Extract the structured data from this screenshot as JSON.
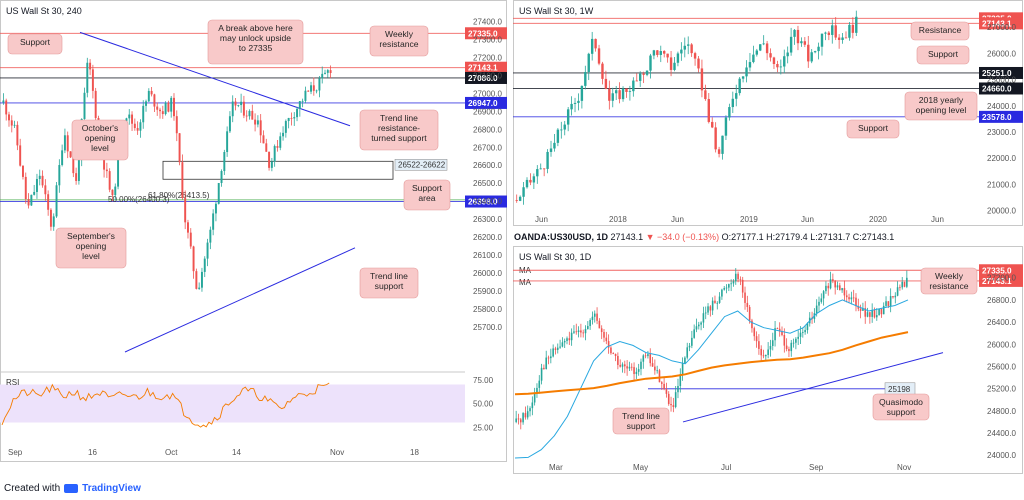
{
  "chart_data": [
    {
      "id": "4h",
      "type": "candlestick",
      "title": "US Wall St 30, 240",
      "ylim": [
        25560,
        27420
      ],
      "yticks": [
        25700,
        25800,
        25900,
        26000,
        26100,
        26200,
        26300,
        26400,
        26500,
        26600,
        26700,
        26800,
        26900,
        27000,
        27100,
        27200,
        27300,
        27400
      ],
      "xticks": [
        "Sep",
        "16",
        "Oct",
        "14",
        "Nov",
        "18"
      ],
      "price_labels": [
        {
          "value": 27335.0,
          "text": "27335.0",
          "color": "#ef5350"
        },
        {
          "value": 27143.1,
          "text": "27143.1",
          "color": "#ef5350"
        },
        {
          "value": 27086.0,
          "text": "27086.0",
          "color": "#131722"
        },
        {
          "value": 26947.0,
          "text": "26947.0",
          "color": "#2a2ae0"
        },
        {
          "value": 26398.0,
          "text": "26398.0",
          "color": "#2a2ae0"
        }
      ],
      "zone_label": "26522-26622",
      "zone": [
        26522,
        26622
      ],
      "fib_labels": [
        "50.00%(26400.3)",
        "61.80%(26413.5)"
      ],
      "annotations": [
        "Support",
        "October's opening level",
        "September's opening level",
        "A break above here may unlock upside to 27335",
        "Weekly resistance",
        "Trend line resistance-turned support",
        "Support area",
        "Trend line support"
      ],
      "anchors": [
        26950,
        26780,
        26350,
        26550,
        26250,
        26800,
        26500,
        27200,
        26700,
        26400,
        26900,
        26800,
        27000,
        26900,
        26950,
        26300,
        25900,
        26200,
        26600,
        26950,
        26900,
        26850,
        26600,
        26800,
        26900,
        27000,
        27050,
        27143
      ],
      "rsi": {
        "label": "RSI",
        "ylim": [
          20,
          80
        ],
        "ticks": [
          75.0,
          50.0,
          25.0
        ],
        "anchors": [
          32,
          55,
          62,
          58,
          66,
          58,
          62,
          55,
          62,
          54,
          60,
          56,
          62,
          58,
          60,
          42,
          30,
          28,
          40,
          55,
          64,
          60,
          52,
          44,
          56,
          60,
          66,
          68
        ]
      }
    },
    {
      "id": "1w",
      "type": "candlestick",
      "title": "US Wall St 30, 1W",
      "ylim": [
        19950,
        27500
      ],
      "yticks": [
        20000,
        21000,
        22000,
        23000,
        24000,
        25000,
        26000,
        27000
      ],
      "xticks": [
        "Jun",
        "2018",
        "Jun",
        "2019",
        "Jun",
        "2020",
        "Jun"
      ],
      "price_labels": [
        {
          "value": 27335.0,
          "text": "27335.0",
          "color": "#ef5350"
        },
        {
          "value": 27143.1,
          "text": "27143.1",
          "color": "#ef5350"
        },
        {
          "value": 25251.0,
          "text": "25251.0",
          "color": "#131722"
        },
        {
          "value": 24660.0,
          "text": "24660.0",
          "color": "#131722"
        },
        {
          "value": 23578.0,
          "text": "23578.0",
          "color": "#2a2ae0"
        }
      ],
      "annotations": [
        "Resistance",
        "Support",
        "2018 yearly opening level",
        "Support"
      ],
      "anchors": [
        20400,
        21200,
        22000,
        23300,
        24400,
        26600,
        24200,
        24600,
        25000,
        26200,
        25500,
        26500,
        24800,
        22000,
        24400,
        25800,
        26400,
        25200,
        26900,
        25700,
        27000,
        26600,
        27150
      ]
    },
    {
      "id": "1d",
      "type": "candlestick",
      "title": "US Wall St 30, 1D",
      "header": {
        "symbol": "OANDA:US30USD, 1D",
        "last": "27143.1",
        "change": "▼ −34.0 (−0.13%)",
        "open": "27177.1",
        "high": "27179.4",
        "low": "27131.7",
        "close": "27143.1"
      },
      "ylim": [
        23950,
        27520
      ],
      "yticks": [
        24000,
        24400,
        24800,
        25200,
        25600,
        26000,
        26400,
        26800,
        27200
      ],
      "xticks": [
        "Mar",
        "May",
        "Jul",
        "Sep",
        "Nov"
      ],
      "price_labels": [
        {
          "value": 27335.0,
          "text": "27335.0",
          "color": "#ef5350"
        },
        {
          "value": 27143.1,
          "text": "27143.1",
          "color": "#ef5350"
        }
      ],
      "legend": [
        "MA",
        "MA"
      ],
      "quasimodo_label": "25198",
      "annotations": [
        "Weekly resistance",
        "Trend line support",
        "Quasimodo support"
      ],
      "anchors": [
        24600,
        24800,
        25600,
        25900,
        26100,
        26250,
        26500,
        26000,
        25600,
        25500,
        25800,
        25400,
        24800,
        25800,
        26400,
        26700,
        27000,
        27300,
        26400,
        25700,
        26300,
        25900,
        26200,
        26600,
        27100,
        27000,
        26800,
        26500,
        26600,
        26900,
        27150
      ],
      "ma_fast": [
        23950,
        23960,
        24100,
        24350,
        24700,
        25200,
        25700,
        25950,
        26050,
        25980,
        25850,
        25800,
        25700,
        25650,
        25900,
        26200,
        26500,
        26600,
        26400,
        26300,
        26250,
        26200,
        26300,
        26550,
        26700,
        26800,
        26700,
        26600,
        26650,
        26700,
        26800
      ],
      "ma_slow": [
        25100,
        25110,
        25130,
        25150,
        25170,
        25190,
        25210,
        25250,
        25300,
        25340,
        25380,
        25400,
        25420,
        25460,
        25520,
        25580,
        25620,
        25650,
        25680,
        25700,
        25720,
        25730,
        25760,
        25800,
        25840,
        25900,
        25980,
        26050,
        26120,
        26170,
        26220
      ]
    }
  ],
  "footer": {
    "prefix": "Created with",
    "brand": "TradingView"
  }
}
